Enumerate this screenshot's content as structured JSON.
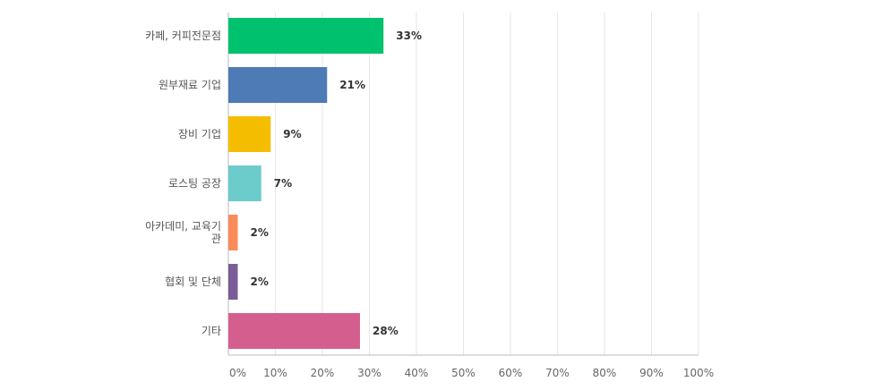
{
  "chart_data": {
    "type": "bar",
    "orientation": "horizontal",
    "categories": [
      "카페, 커피전문점",
      "원부재료 기업",
      "장비 기업",
      "로스팅 공장",
      "아카데미, 교육기관",
      "협회 및 단체",
      "기타"
    ],
    "values": [
      33,
      21,
      9,
      7,
      2,
      2,
      28
    ],
    "value_labels": [
      "33%",
      "21%",
      "9%",
      "7%",
      "2%",
      "2%",
      "28%"
    ],
    "colors": [
      "#00c16e",
      "#4e7ab5",
      "#f5bd00",
      "#6ccbcb",
      "#fa8c5a",
      "#7a5d96",
      "#d45f8e"
    ],
    "xlim": [
      0,
      100
    ],
    "xticks": [
      0,
      10,
      20,
      30,
      40,
      50,
      60,
      70,
      80,
      90,
      100
    ],
    "xtick_labels": [
      "0%",
      "10%",
      "20%",
      "30%",
      "40%",
      "50%",
      "60%",
      "70%",
      "80%",
      "90%",
      "100%"
    ],
    "title": "",
    "xlabel": "",
    "ylabel": "",
    "grid": true,
    "legend": "none"
  }
}
